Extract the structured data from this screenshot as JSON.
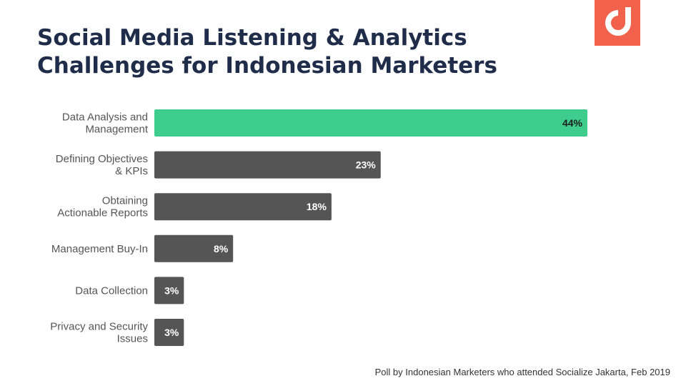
{
  "title_lines": [
    "Social Media Listening & Analytics",
    "Challenges for Indonesian Marketers"
  ],
  "footnote": "Poll by Indonesian Marketers who attended Socialize Jakarta, Feb 2019",
  "logo_icon": "brand-d-logo-icon",
  "colors": {
    "brand": "#f2614b",
    "title": "#1f2d4a",
    "highlight_bar": "#3ecd8c",
    "bar": "#555555",
    "bar_label_on_highlight": "#1e1e1e",
    "bar_label": "#ffffff",
    "category_label": "#555555"
  },
  "chart_data": {
    "type": "bar",
    "orientation": "horizontal",
    "categories": [
      [
        "Data Analysis and",
        "Management"
      ],
      [
        "Defining Objectives",
        "& KPIs"
      ],
      [
        "Obtaining",
        "Actionable Reports"
      ],
      [
        "Management Buy-In"
      ],
      [
        "Data Collection"
      ],
      [
        "Privacy and Security",
        "Issues"
      ]
    ],
    "values": [
      44,
      23,
      18,
      8,
      3,
      3
    ],
    "value_labels": [
      "44%",
      "23%",
      "18%",
      "8%",
      "3%",
      "3%"
    ],
    "unit": "%",
    "highlight_index": 0,
    "xlim": [
      0,
      44
    ],
    "grid": false,
    "legend": "none"
  }
}
